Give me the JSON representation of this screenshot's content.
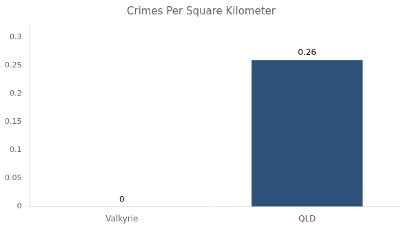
{
  "chart_data": {
    "type": "bar",
    "title": "Crimes Per Square Kilometer",
    "categories": [
      "Valkyrie",
      "QLD"
    ],
    "values": [
      0,
      0.26
    ],
    "color": "#2e527a",
    "ylim": [
      0,
      0.32
    ],
    "yticks": [
      0,
      0.05,
      0.1,
      0.15,
      0.2,
      0.25,
      0.3
    ],
    "grid": false,
    "data_labels": true
  }
}
